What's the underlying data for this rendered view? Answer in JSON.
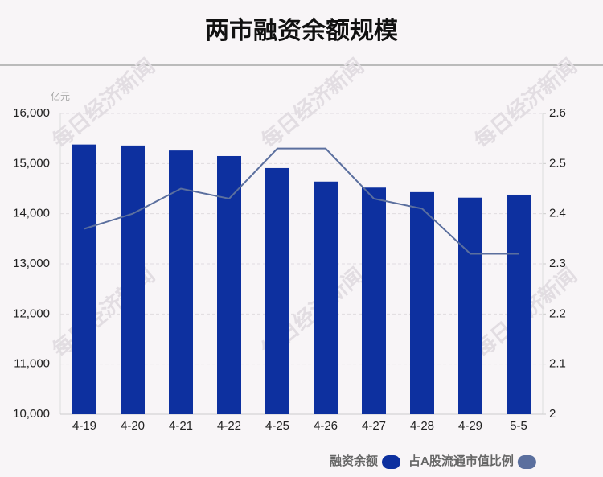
{
  "chart_data": {
    "type": "bar_line",
    "title": "两市融资余额规模",
    "y_unit": "亿元",
    "watermark": "每日经济新闻",
    "categories": [
      "4-19",
      "4-20",
      "4-21",
      "4-22",
      "4-25",
      "4-26",
      "4-27",
      "4-28",
      "4-29",
      "5-5"
    ],
    "series": [
      {
        "name": "融资余额",
        "type": "bar",
        "color": "#0d309f",
        "values": [
          15380,
          15360,
          15260,
          15150,
          14910,
          14640,
          14520,
          14430,
          14320,
          14380
        ]
      },
      {
        "name": "占A股流通市值比例",
        "type": "line",
        "axis": "y2",
        "color": "#5b6f9e",
        "values": [
          2.37,
          2.4,
          2.45,
          2.43,
          2.53,
          2.53,
          2.43,
          2.41,
          2.32,
          2.32
        ]
      }
    ],
    "ylim": [
      10000,
      16000
    ],
    "yticks": [
      {
        "value": 10000,
        "label": "10,000"
      },
      {
        "value": 11000,
        "label": "11,000"
      },
      {
        "value": 12000,
        "label": "12,000"
      },
      {
        "value": 13000,
        "label": "13,000"
      },
      {
        "value": 14000,
        "label": "14,000"
      },
      {
        "value": 15000,
        "label": "15,000"
      },
      {
        "value": 16000,
        "label": "16,000"
      }
    ],
    "y2lim": [
      2,
      2.6
    ],
    "y2ticks": [
      2,
      2.1,
      2.2,
      2.3,
      2.4,
      2.5,
      2.6
    ],
    "grid": true
  }
}
